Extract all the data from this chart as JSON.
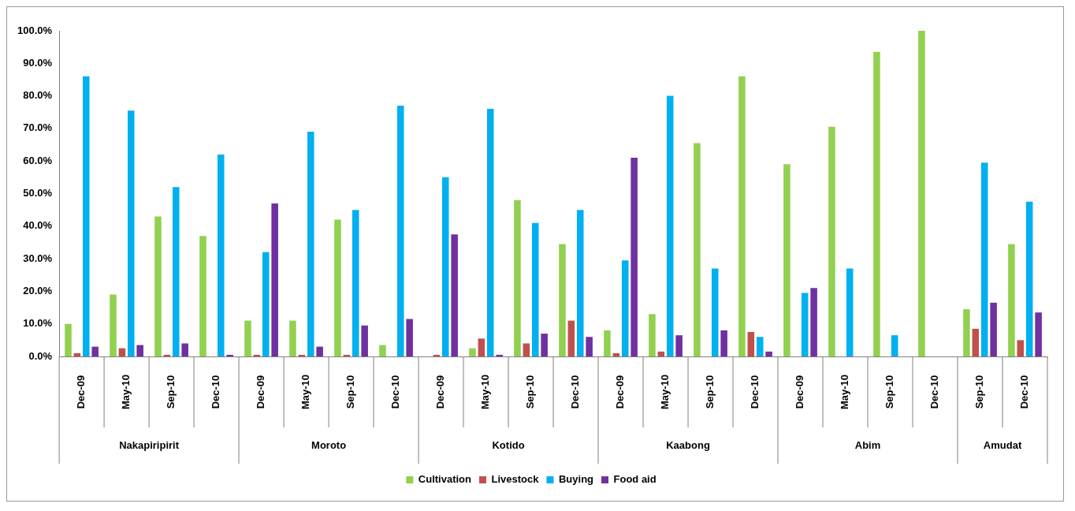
{
  "chart_data": {
    "type": "bar",
    "categories": [
      "Dec-09",
      "May-10",
      "Sep-10",
      "Dec-10",
      "Dec-09",
      "May-10",
      "Sep-10",
      "Dec-10",
      "Dec-09",
      "May-10",
      "Sep-10",
      "Dec-10",
      "Dec-09",
      "May-10",
      "Sep-10",
      "Dec-10",
      "Dec-09",
      "May-10",
      "Sep-10",
      "Dec-10",
      "Sep-10",
      "Dec-10"
    ],
    "series": [
      {
        "name": "Cultivation",
        "color": "#92d050",
        "values": [
          10,
          19,
          43,
          37,
          11,
          11,
          42,
          3.5,
          0,
          2.5,
          48,
          34.5,
          8,
          13,
          65.5,
          86,
          59,
          70.5,
          93.5,
          100,
          14.5,
          34.5
        ]
      },
      {
        "name": "Livestock",
        "color": "#c0504d",
        "values": [
          1,
          2.5,
          0.5,
          0,
          0.5,
          0.5,
          0.5,
          0,
          0.5,
          5.5,
          4,
          11,
          1,
          1.5,
          0,
          7.5,
          0,
          0,
          0,
          0,
          8.5,
          5
        ]
      },
      {
        "name": "Buying",
        "color": "#00b0f0",
        "values": [
          86,
          75.5,
          52,
          62,
          32,
          69,
          45,
          77,
          55,
          76,
          41,
          45,
          29.5,
          80,
          27,
          6,
          19.5,
          27,
          6.5,
          0,
          59.5,
          47.5
        ]
      },
      {
        "name": "Food aid",
        "color": "#7030a0",
        "values": [
          3,
          3.5,
          4,
          0.5,
          47,
          3,
          9.5,
          11.5,
          37.5,
          0.5,
          7,
          6,
          61,
          6.5,
          8,
          1.5,
          21,
          0,
          0,
          0,
          16.5,
          13.5
        ]
      }
    ],
    "annotations": [
      "Nakapiripirit",
      "Moroto",
      "Kotido",
      "Kaabong",
      "Abim",
      "Amudat"
    ],
    "ylim": [
      0,
      100
    ],
    "yticks": [
      {
        "value": 0,
        "label": "0.0%"
      },
      {
        "value": 10,
        "label": "10.0%"
      },
      {
        "value": 20,
        "label": "20.0%"
      },
      {
        "value": 30,
        "label": "30.0%"
      },
      {
        "value": 40,
        "label": "40.0%"
      },
      {
        "value": 50,
        "label": "50.0%"
      },
      {
        "value": 60,
        "label": "60.0%"
      },
      {
        "value": 70,
        "label": "70.0%"
      },
      {
        "value": 80,
        "label": "80.0%"
      },
      {
        "value": 90,
        "label": "90.0%"
      },
      {
        "value": 100,
        "label": "100.0%"
      }
    ],
    "legend": "bottom"
  }
}
